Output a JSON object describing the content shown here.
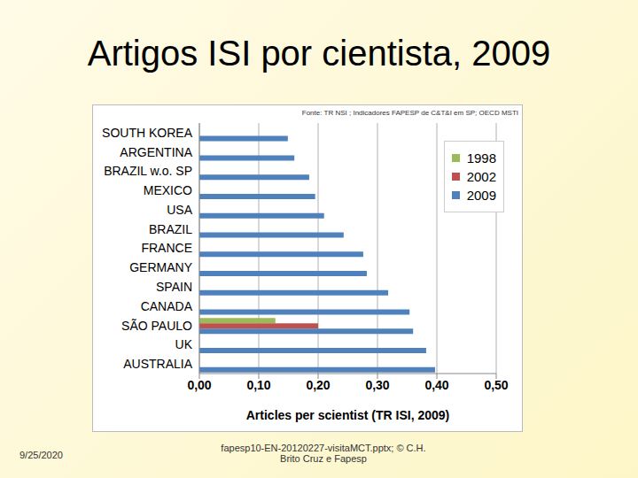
{
  "chart_data": {
    "type": "bar",
    "orientation": "horizontal",
    "title": "Artigos ISI por cientista, 2009",
    "annotations": [
      "Fonte: TR NSI ; Indicadores FAPESP de C&T&I em SP; OECD MSTI",
      "9/25/2020",
      "fapesp10-EN-20120227-visitaMCT.pptx; © C.H. Brito Cruz e Fapesp"
    ],
    "x_label": "Articles per scientist (TR ISI, 2009)",
    "categories": [
      "SOUTH KOREA",
      "ARGENTINA",
      "BRAZIL w.o. SP",
      "MEXICO",
      "USA",
      "BRAZIL",
      "FRANCE",
      "GERMANY",
      "SPAIN",
      "CANADA",
      "SÃO PAULO",
      "UK",
      "AUSTRALIA"
    ],
    "series": [
      {
        "name": "1998",
        "color": "#9bbb59",
        "values": [
          null,
          null,
          null,
          null,
          null,
          null,
          null,
          null,
          null,
          null,
          0.128,
          null,
          null
        ]
      },
      {
        "name": "2002",
        "color": "#c0504d",
        "values": [
          null,
          null,
          null,
          null,
          null,
          null,
          null,
          null,
          null,
          null,
          0.2,
          null,
          null
        ]
      },
      {
        "name": "2009",
        "color": "#4f81bd",
        "values": [
          0.149,
          0.16,
          0.185,
          0.195,
          0.21,
          0.243,
          0.276,
          0.282,
          0.318,
          0.354,
          0.36,
          0.382,
          0.397
        ]
      }
    ],
    "xlim": [
      0,
      0.5
    ],
    "xticks": [
      {
        "value": 0,
        "label": "0,00"
      },
      {
        "value": 0.1,
        "label": "0,10"
      },
      {
        "value": 0.2,
        "label": "0,20"
      },
      {
        "value": 0.3,
        "label": "0,30"
      },
      {
        "value": 0.4,
        "label": "0,40"
      },
      {
        "value": 0.5,
        "label": "0,50"
      }
    ],
    "grid": true,
    "legend": "upper right"
  }
}
